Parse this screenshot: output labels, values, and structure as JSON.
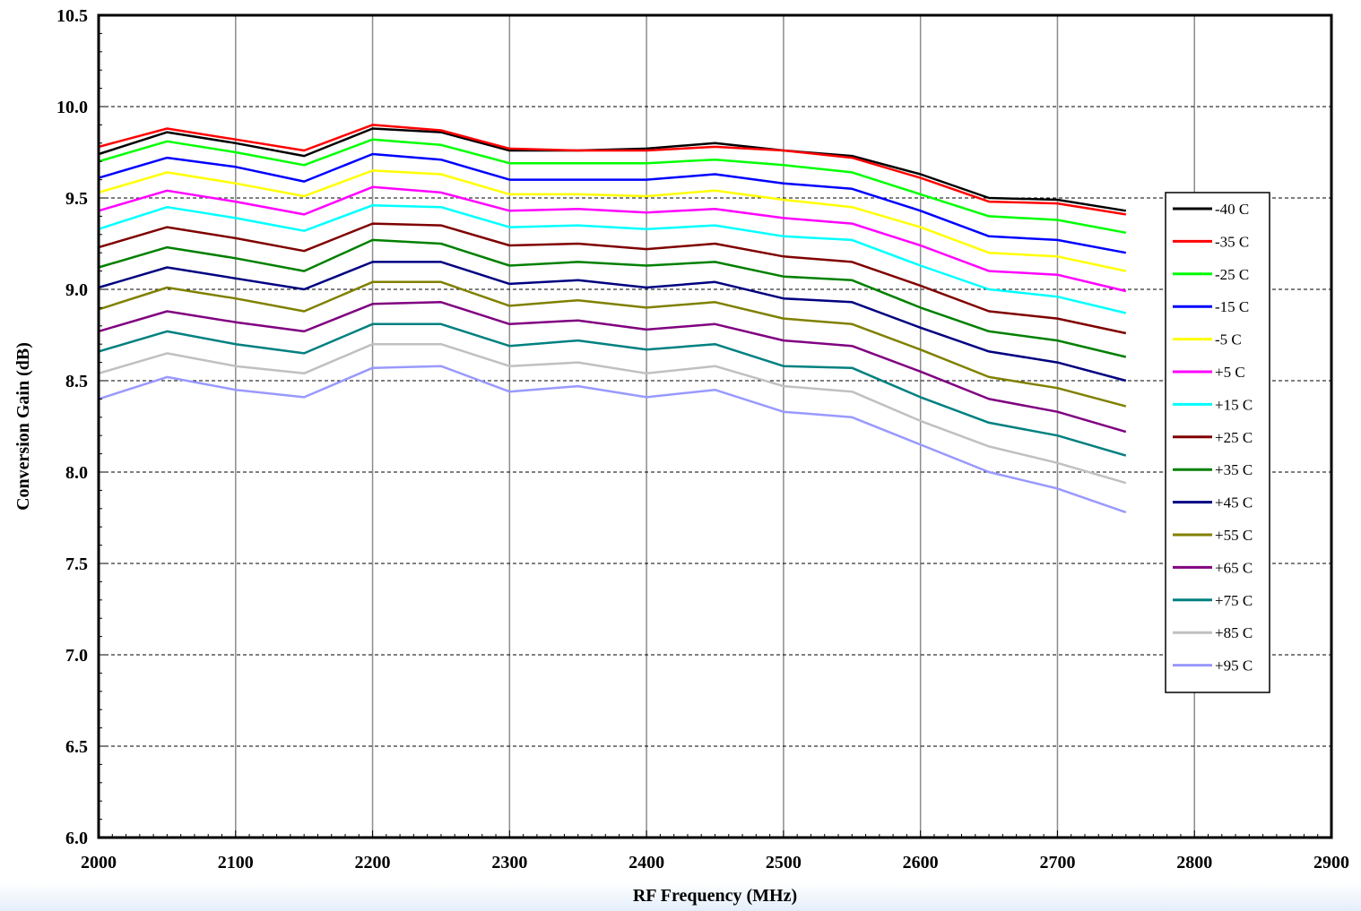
{
  "chart_data": {
    "type": "line",
    "title": "",
    "xlabel": "RF Frequency (MHz)",
    "ylabel": "Conversion Gain (dB)",
    "xlim": [
      2000,
      2900
    ],
    "ylim": [
      6.0,
      10.5
    ],
    "x_ticks": [
      "2000",
      "2100",
      "2200",
      "2300",
      "2400",
      "2500",
      "2600",
      "2700",
      "2800",
      "2900"
    ],
    "y_ticks": [
      "6.0",
      "6.5",
      "7.0",
      "7.5",
      "8.0",
      "8.5",
      "9.0",
      "9.5",
      "10.0",
      "10.5"
    ],
    "grid": {
      "vertical": "solid-gray",
      "horizontal": "dashed-black"
    },
    "legend_position": "right",
    "x": [
      2000,
      2050,
      2100,
      2150,
      2200,
      2250,
      2300,
      2350,
      2400,
      2450,
      2500,
      2550,
      2600,
      2650,
      2700,
      2750
    ],
    "series": [
      {
        "name": "-40 C",
        "color": "#000000",
        "values": [
          9.74,
          9.86,
          9.8,
          9.73,
          9.88,
          9.86,
          9.76,
          9.76,
          9.77,
          9.8,
          9.76,
          9.73,
          9.63,
          9.5,
          9.49,
          9.43
        ]
      },
      {
        "name": "-35 C",
        "color": "#ff0000",
        "values": [
          9.78,
          9.88,
          9.82,
          9.76,
          9.9,
          9.87,
          9.77,
          9.76,
          9.76,
          9.78,
          9.76,
          9.72,
          9.61,
          9.48,
          9.47,
          9.41
        ]
      },
      {
        "name": "-25 C",
        "color": "#00ff00",
        "values": [
          9.7,
          9.81,
          9.75,
          9.68,
          9.82,
          9.79,
          9.69,
          9.69,
          9.69,
          9.71,
          9.68,
          9.64,
          9.52,
          9.4,
          9.38,
          9.31
        ]
      },
      {
        "name": "-15 C",
        "color": "#0000ff",
        "values": [
          9.61,
          9.72,
          9.67,
          9.59,
          9.74,
          9.71,
          9.6,
          9.6,
          9.6,
          9.63,
          9.58,
          9.55,
          9.43,
          9.29,
          9.27,
          9.2
        ]
      },
      {
        "name": "-5 C",
        "color": "#ffff00",
        "values": [
          9.53,
          9.64,
          9.58,
          9.51,
          9.65,
          9.63,
          9.52,
          9.52,
          9.51,
          9.54,
          9.49,
          9.45,
          9.34,
          9.2,
          9.18,
          9.1
        ]
      },
      {
        "name": "+5 C",
        "color": "#ff00ff",
        "values": [
          9.43,
          9.54,
          9.48,
          9.41,
          9.56,
          9.53,
          9.43,
          9.44,
          9.42,
          9.44,
          9.39,
          9.36,
          9.24,
          9.1,
          9.08,
          8.99
        ]
      },
      {
        "name": "+15 C",
        "color": "#00ffff",
        "values": [
          9.33,
          9.45,
          9.39,
          9.32,
          9.46,
          9.45,
          9.34,
          9.35,
          9.33,
          9.35,
          9.29,
          9.27,
          9.13,
          9.0,
          8.96,
          8.87
        ]
      },
      {
        "name": "+25 C",
        "color": "#800000",
        "values": [
          9.23,
          9.34,
          9.28,
          9.21,
          9.36,
          9.35,
          9.24,
          9.25,
          9.22,
          9.25,
          9.18,
          9.15,
          9.02,
          8.88,
          8.84,
          8.76
        ]
      },
      {
        "name": "+35 C",
        "color": "#008000",
        "values": [
          9.12,
          9.23,
          9.17,
          9.1,
          9.27,
          9.25,
          9.13,
          9.15,
          9.13,
          9.15,
          9.07,
          9.05,
          8.9,
          8.77,
          8.72,
          8.63
        ]
      },
      {
        "name": "+45 C",
        "color": "#000080",
        "values": [
          9.01,
          9.12,
          9.06,
          9.0,
          9.15,
          9.15,
          9.03,
          9.05,
          9.01,
          9.04,
          8.95,
          8.93,
          8.79,
          8.66,
          8.6,
          8.5
        ]
      },
      {
        "name": "+55 C",
        "color": "#808000",
        "values": [
          8.89,
          9.01,
          8.95,
          8.88,
          9.04,
          9.04,
          8.91,
          8.94,
          8.9,
          8.93,
          8.84,
          8.81,
          8.67,
          8.52,
          8.46,
          8.36
        ]
      },
      {
        "name": "+65 C",
        "color": "#800080",
        "values": [
          8.77,
          8.88,
          8.82,
          8.77,
          8.92,
          8.93,
          8.81,
          8.83,
          8.78,
          8.81,
          8.72,
          8.69,
          8.55,
          8.4,
          8.33,
          8.22
        ]
      },
      {
        "name": "+75 C",
        "color": "#008080",
        "values": [
          8.66,
          8.77,
          8.7,
          8.65,
          8.81,
          8.81,
          8.69,
          8.72,
          8.67,
          8.7,
          8.58,
          8.57,
          8.41,
          8.27,
          8.2,
          8.09
        ]
      },
      {
        "name": "+85 C",
        "color": "#c0c0c0",
        "values": [
          8.54,
          8.65,
          8.58,
          8.54,
          8.7,
          8.7,
          8.58,
          8.6,
          8.54,
          8.58,
          8.47,
          8.44,
          8.28,
          8.14,
          8.05,
          7.94
        ]
      },
      {
        "name": "+95 C",
        "color": "#9999ff",
        "values": [
          8.4,
          8.52,
          8.45,
          8.41,
          8.57,
          8.58,
          8.44,
          8.47,
          8.41,
          8.45,
          8.33,
          8.3,
          8.15,
          8.0,
          7.91,
          7.78
        ]
      }
    ]
  }
}
